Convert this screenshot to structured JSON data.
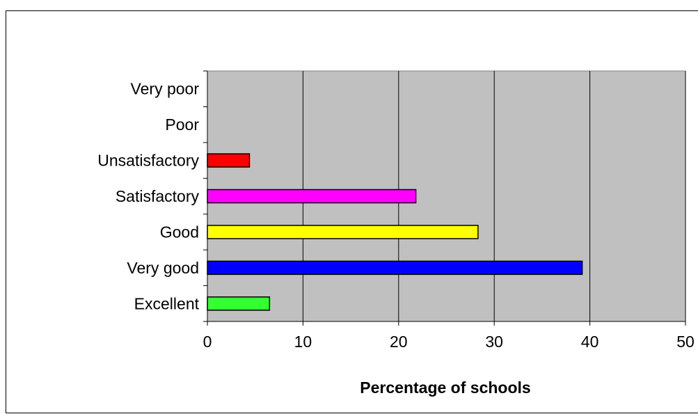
{
  "chart_data": {
    "type": "bar",
    "orientation": "horizontal",
    "categories": [
      "Excellent",
      "Very good",
      "Good",
      "Satisfactory",
      "Unsatisfactory",
      "Poor",
      "Very poor"
    ],
    "values": [
      6.5,
      39.2,
      28.3,
      21.8,
      4.4,
      0,
      0
    ],
    "colors": [
      "#33ff33",
      "#0000ff",
      "#ffff00",
      "#ff00ff",
      "#ff0000",
      "#808080",
      "#808080"
    ],
    "xlabel": "Percentage of schools",
    "xlim": [
      0,
      50
    ],
    "xticks": [
      "0",
      "10",
      "20",
      "30",
      "40",
      "50"
    ],
    "grid": "vertical",
    "plot_background": "#c0c0c0",
    "legend": "none"
  }
}
